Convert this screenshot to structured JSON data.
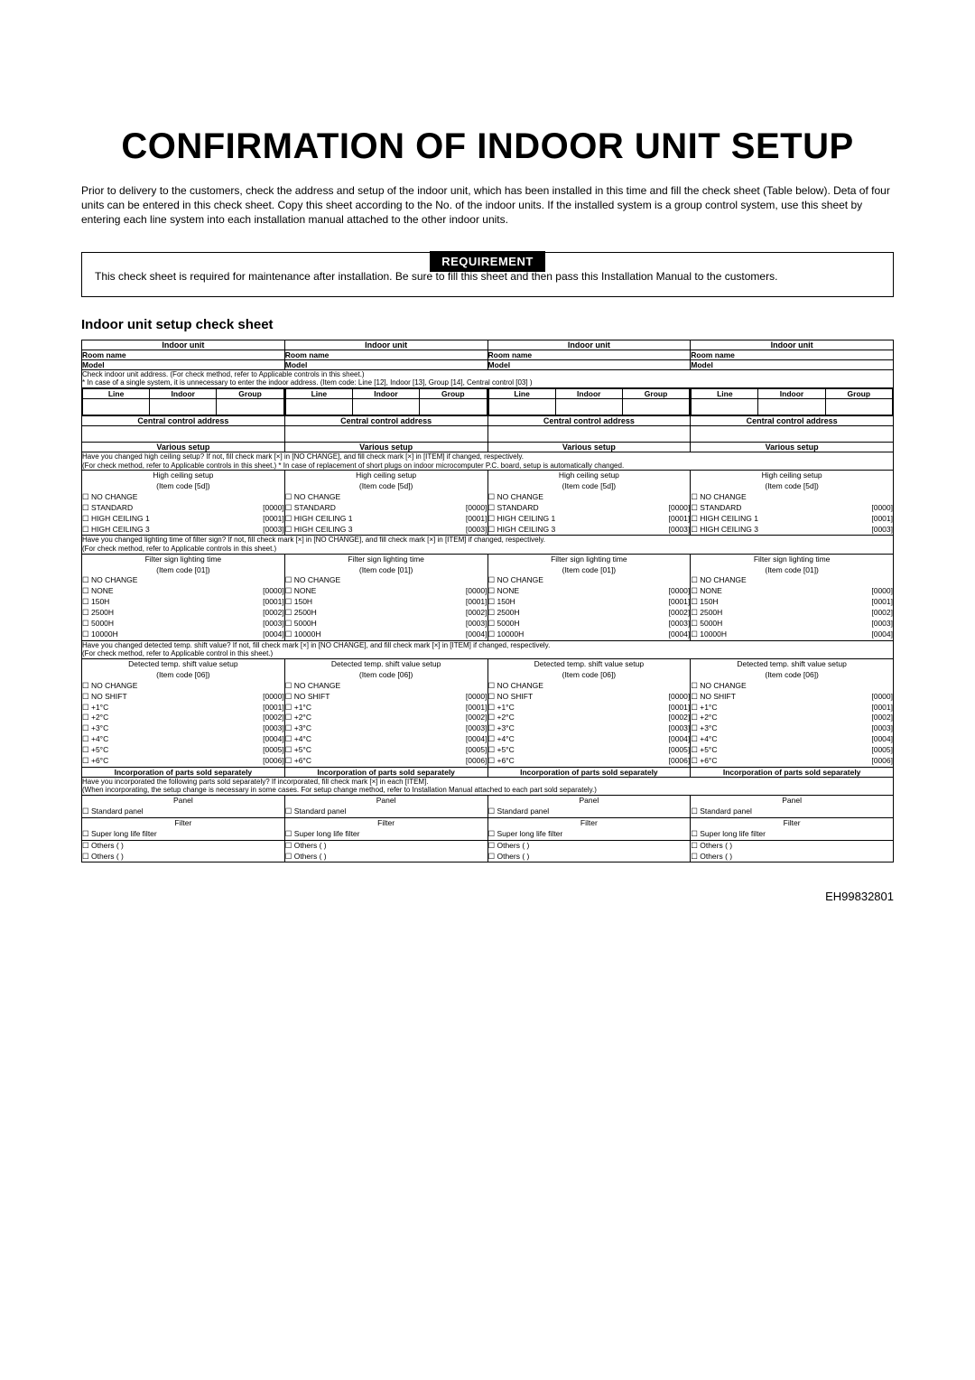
{
  "title": "CONFIRMATION OF INDOOR UNIT SETUP",
  "intro": "Prior to delivery to the customers, check the address and setup of the indoor unit, which has been installed in this time and fill the check sheet (Table below). Deta of four units can be entered in this check sheet. Copy this sheet according to the No. of the indoor units. If the installed system is a group control system, use this sheet by entering each line system into each installation manual attached to the other indoor units.",
  "req_label": "REQUIREMENT",
  "req_text": "This check sheet is required for maintenance after installation. Be sure to fill this sheet and then pass this Installation Manual to the customers.",
  "subhead": "Indoor unit setup check sheet",
  "col_header": "Indoor unit",
  "row_room": "Room name",
  "row_model": "Model",
  "note_addr": "Check indoor unit address. (For check method, refer to Applicable controls in this sheet.)\n* In case of a single system, it is unnecessary to enter the indoor address. (Item code: Line [12], Indoor [13], Group [14], Central control [03]  )",
  "sub_line": "Line",
  "sub_indoor": "Indoor",
  "sub_group": "Group",
  "row_cca": "Central control address",
  "row_various": "Various setup",
  "note_hc": "Have you changed high ceiling setup? If not, fill check mark [×] in [NO CHANGE], and fill check mark [×] in [ITEM] if changed, respectively.\n(For check method, refer to Applicable controls in this sheet.) * In case of replacement of short plugs on indoor microcomputer P.C. board, setup is automatically changed.",
  "hc": {
    "title": "High ceiling setup",
    "code": "(Item code [5d])",
    "nochange": "NO CHANGE",
    "opts": [
      {
        "l": "STANDARD",
        "c": "[0000]"
      },
      {
        "l": "HIGH CEILING 1",
        "c": "[0001]"
      },
      {
        "l": "HIGH CEILING 3",
        "c": "[0003]"
      }
    ]
  },
  "note_filter": "Have you changed lighting time of filter sign? If not, fill check mark [×] in [NO CHANGE], and fill check mark [×] in [ITEM] if changed, respectively.\n(For check method, refer to Applicable controls in this sheet.)",
  "filter": {
    "title": "Filter sign lighting time",
    "code": "(Item code [01])",
    "nochange": "NO CHANGE",
    "opts": [
      {
        "l": "NONE",
        "c": "[0000]"
      },
      {
        "l": "   150H",
        "c": "[0001]"
      },
      {
        "l": "  2500H",
        "c": "[0002]"
      },
      {
        "l": "  5000H",
        "c": "[0003]"
      },
      {
        "l": "10000H",
        "c": "[0004]"
      }
    ]
  },
  "note_temp": "Have you changed detected temp. shift value? If not, fill check mark [×] in [NO CHANGE], and fill check mark [×] in [ITEM] if changed, respectively.\n(For check method, refer to Applicable control in this sheet.)",
  "temp": {
    "title": "Detected temp. shift value setup",
    "code": "(Item code [06])",
    "nochange": "NO CHANGE",
    "opts": [
      {
        "l": "NO SHIFT",
        "c": "[0000]"
      },
      {
        "l": "+1°C",
        "c": "[0001]"
      },
      {
        "l": "+2°C",
        "c": "[0002]"
      },
      {
        "l": "+3°C",
        "c": "[0003]"
      },
      {
        "l": "+4°C",
        "c": "[0004]"
      },
      {
        "l": "+5°C",
        "c": "[0005]"
      },
      {
        "l": "+6°C",
        "c": "[0006]"
      }
    ]
  },
  "incorp_hdr": "Incorporation of parts sold separately",
  "note_incorp": "Have you incorporated the following parts sold separately? If incorporated, fill check mark [×] in each [ITEM].\n(When incorporating, the setup change is necessary in some cases. For setup change method, refer to Installation Manual attached to each part sold separately.)",
  "panel": {
    "title": "Panel",
    "opt": "Standard panel"
  },
  "filt": {
    "title": "Filter",
    "opt": "Super long life filter"
  },
  "others": "Others (             )",
  "footer": "EH99832801"
}
